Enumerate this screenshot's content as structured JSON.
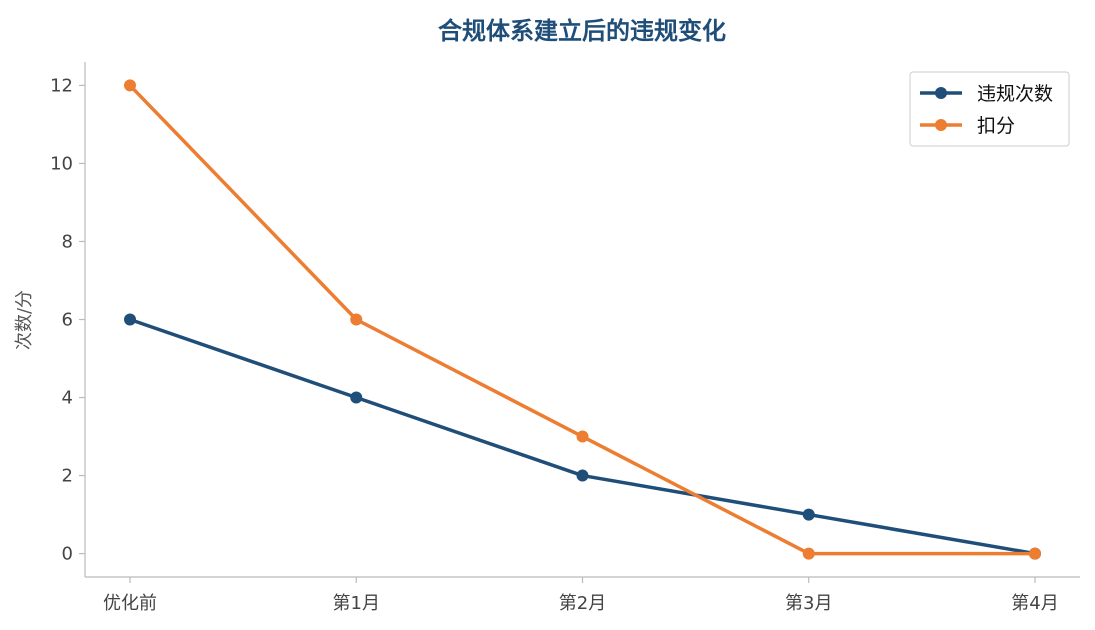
{
  "chart_data": {
    "type": "line",
    "title": "合规体系建立后的违规变化",
    "xlabel": "",
    "ylabel": "次数/分",
    "categories": [
      "优化前",
      "第1月",
      "第2月",
      "第3月",
      "第4月"
    ],
    "ylim": [
      -0.6,
      12.6
    ],
    "yticks": [
      0,
      2,
      4,
      6,
      8,
      10,
      12
    ],
    "grid": false,
    "legend_position": "top-right",
    "series": [
      {
        "name": "违规次数",
        "color": "#1f4e79",
        "values": [
          6,
          4,
          2,
          1,
          0
        ]
      },
      {
        "name": "扣分",
        "color": "#ed7d31",
        "values": [
          12,
          6,
          3,
          0,
          0
        ]
      }
    ],
    "colors": {
      "title": "#1f4e79",
      "axis": "#bbbbbb"
    }
  }
}
